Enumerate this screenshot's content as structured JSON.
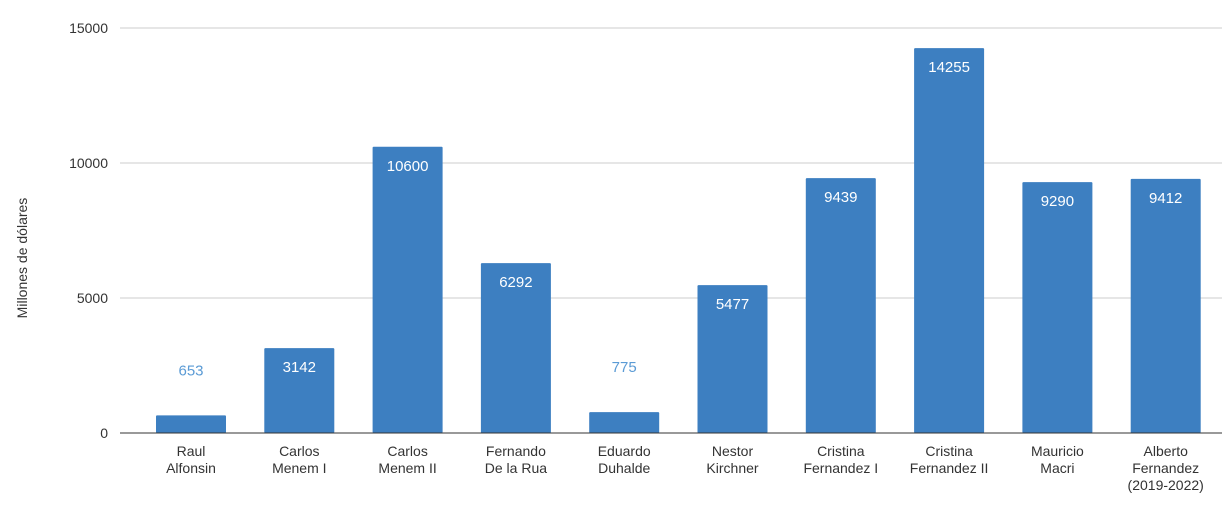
{
  "chart_data": {
    "type": "bar",
    "title": "",
    "xlabel": "",
    "ylabel": "Millones de dólares",
    "ylim": [
      0,
      15000
    ],
    "yticks": [
      0,
      5000,
      10000,
      15000
    ],
    "grid": true,
    "categories": [
      [
        "Raul",
        "Alfonsin"
      ],
      [
        "Carlos",
        "Menem I"
      ],
      [
        "Carlos",
        "Menem II"
      ],
      [
        "Fernando",
        "De la Rua"
      ],
      [
        "Eduardo",
        "Duhalde"
      ],
      [
        "Nestor",
        "Kirchner"
      ],
      [
        "Cristina",
        "Fernandez I"
      ],
      [
        "Cristina",
        "Fernandez II"
      ],
      [
        "Mauricio",
        "Macri"
      ],
      [
        "Alberto",
        "Fernandez",
        "(2019-2022)"
      ]
    ],
    "values": [
      653,
      3142,
      10600,
      6292,
      775,
      5477,
      9439,
      14255,
      9290,
      9412
    ],
    "colors": {
      "bar": "#3d7fc1",
      "label_inside": "#ffffff",
      "label_outside": "#5b9bd5",
      "grid": "#cccccc",
      "axis": "#333333"
    }
  }
}
